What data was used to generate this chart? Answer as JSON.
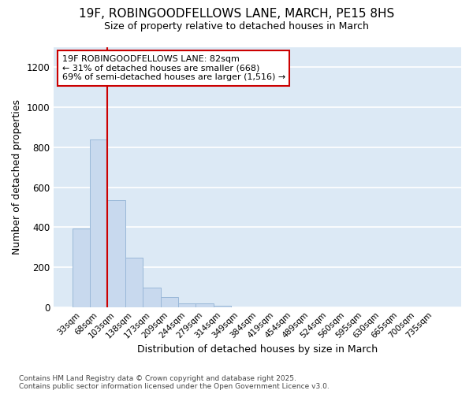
{
  "title_line1": "19F, ROBINGOODFELLOWS LANE, MARCH, PE15 8HS",
  "title_line2": "Size of property relative to detached houses in March",
  "xlabel": "Distribution of detached houses by size in March",
  "ylabel": "Number of detached properties",
  "bar_color": "#c8d9ee",
  "bar_edge_color": "#9ab8d8",
  "background_color": "#dce9f5",
  "fig_background_color": "#ffffff",
  "grid_color": "#ffffff",
  "annotation_box_color": "#cc0000",
  "property_line_color": "#cc0000",
  "categories": [
    "33sqm",
    "68sqm",
    "103sqm",
    "138sqm",
    "173sqm",
    "209sqm",
    "244sqm",
    "279sqm",
    "314sqm",
    "349sqm",
    "384sqm",
    "419sqm",
    "454sqm",
    "489sqm",
    "524sqm",
    "560sqm",
    "595sqm",
    "630sqm",
    "665sqm",
    "700sqm",
    "735sqm"
  ],
  "values": [
    395,
    840,
    535,
    248,
    98,
    52,
    20,
    18,
    5,
    0,
    0,
    0,
    0,
    0,
    0,
    0,
    0,
    0,
    0,
    0,
    0
  ],
  "ylim": [
    0,
    1300
  ],
  "yticks": [
    0,
    200,
    400,
    600,
    800,
    1000,
    1200
  ],
  "property_bar_index": 1,
  "annotation_text": "19F ROBINGOODFELLOWS LANE: 82sqm\n← 31% of detached houses are smaller (668)\n69% of semi-detached houses are larger (1,516) →",
  "footnote": "Contains HM Land Registry data © Crown copyright and database right 2025.\nContains public sector information licensed under the Open Government Licence v3.0."
}
